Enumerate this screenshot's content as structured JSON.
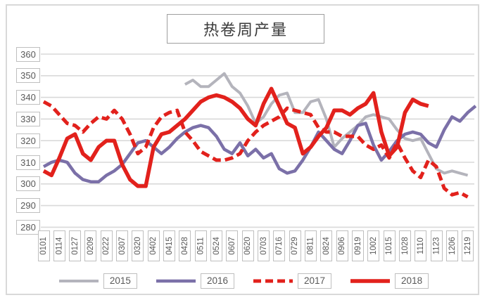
{
  "chart_data": {
    "type": "line",
    "title": "热卷周产量",
    "legend_position": "bottom",
    "grid": "horizontal-only",
    "y_axis": {
      "min": 280,
      "max": 360,
      "step": 10,
      "ticks": [
        360,
        350,
        340,
        330,
        320,
        310,
        300,
        290,
        280
      ]
    },
    "x_labels": [
      "0101",
      "0114",
      "0127",
      "0209",
      "0222",
      "0307",
      "0320",
      "0402",
      "0415",
      "0428",
      "0511",
      "0524",
      "0607",
      "0620",
      "0703",
      "0716",
      "0729",
      "0811",
      "0824",
      "0906",
      "0919",
      "1002",
      "1015",
      "1028",
      "1110",
      "1123",
      "1206",
      "1219"
    ],
    "points_per_label": 2,
    "series": [
      {
        "name": "2015",
        "color": "#b4b4bc",
        "style": "solid",
        "width": 4,
        "values": [
          null,
          null,
          null,
          null,
          null,
          null,
          null,
          null,
          null,
          null,
          null,
          null,
          null,
          null,
          null,
          null,
          null,
          null,
          346,
          348,
          345,
          345,
          348,
          351,
          345,
          342,
          336,
          328,
          331,
          337,
          341,
          342,
          333,
          333,
          338,
          339,
          330,
          317,
          321,
          324,
          327,
          331,
          332,
          331,
          330,
          325,
          321,
          320,
          321,
          314,
          307,
          305,
          306,
          305,
          304,
          null
        ]
      },
      {
        "name": "2016",
        "color": "#7b70a8",
        "style": "solid",
        "width": 4.5,
        "values": [
          308,
          310,
          311,
          310,
          305,
          302,
          301,
          301,
          304,
          306,
          309,
          314,
          319,
          320,
          317,
          314,
          317,
          321,
          324,
          326,
          327,
          326,
          322,
          316,
          314,
          319,
          313,
          316,
          312,
          314,
          307,
          305,
          306,
          311,
          317,
          324,
          320,
          316,
          314,
          320,
          327,
          328,
          318,
          311,
          315,
          320,
          323,
          324,
          323,
          319,
          317,
          325,
          331,
          329,
          333,
          336
        ]
      },
      {
        "name": "2017",
        "color": "#e2211c",
        "style": "dashed",
        "width": 5,
        "values": [
          338,
          336,
          332,
          328,
          327,
          324,
          328,
          331,
          330,
          334,
          330,
          323,
          314,
          317,
          326,
          331,
          333,
          334,
          324,
          320,
          315,
          313,
          311,
          311,
          312,
          314,
          320,
          324,
          327,
          329,
          331,
          335,
          334,
          333,
          332,
          326,
          324,
          324,
          322,
          322,
          322,
          318,
          316,
          318,
          312,
          319,
          312,
          306,
          303,
          311,
          308,
          298,
          295,
          296,
          294,
          null
        ]
      },
      {
        "name": "2018",
        "color": "#e2211c",
        "style": "solid",
        "width": 5.5,
        "values": [
          306,
          304,
          312,
          321,
          323,
          314,
          311,
          317,
          320,
          320,
          309,
          302,
          299,
          299,
          317,
          323,
          324,
          327,
          330,
          334,
          338,
          340,
          341,
          340,
          338,
          335,
          330,
          327,
          337,
          344,
          336,
          328,
          326,
          314,
          317,
          322,
          326,
          334,
          334,
          332,
          335,
          337,
          342,
          324,
          313,
          317,
          333,
          339,
          337,
          336,
          null,
          null,
          null,
          null,
          null,
          null
        ]
      }
    ],
    "colors": {
      "gridline": "#d9d9d9",
      "frame_border": "#d9d9d9",
      "label_box_border": "#bfbfbf",
      "axis_text": "#595959",
      "title_text": "#3a3a3a",
      "background": "#ffffff"
    }
  }
}
